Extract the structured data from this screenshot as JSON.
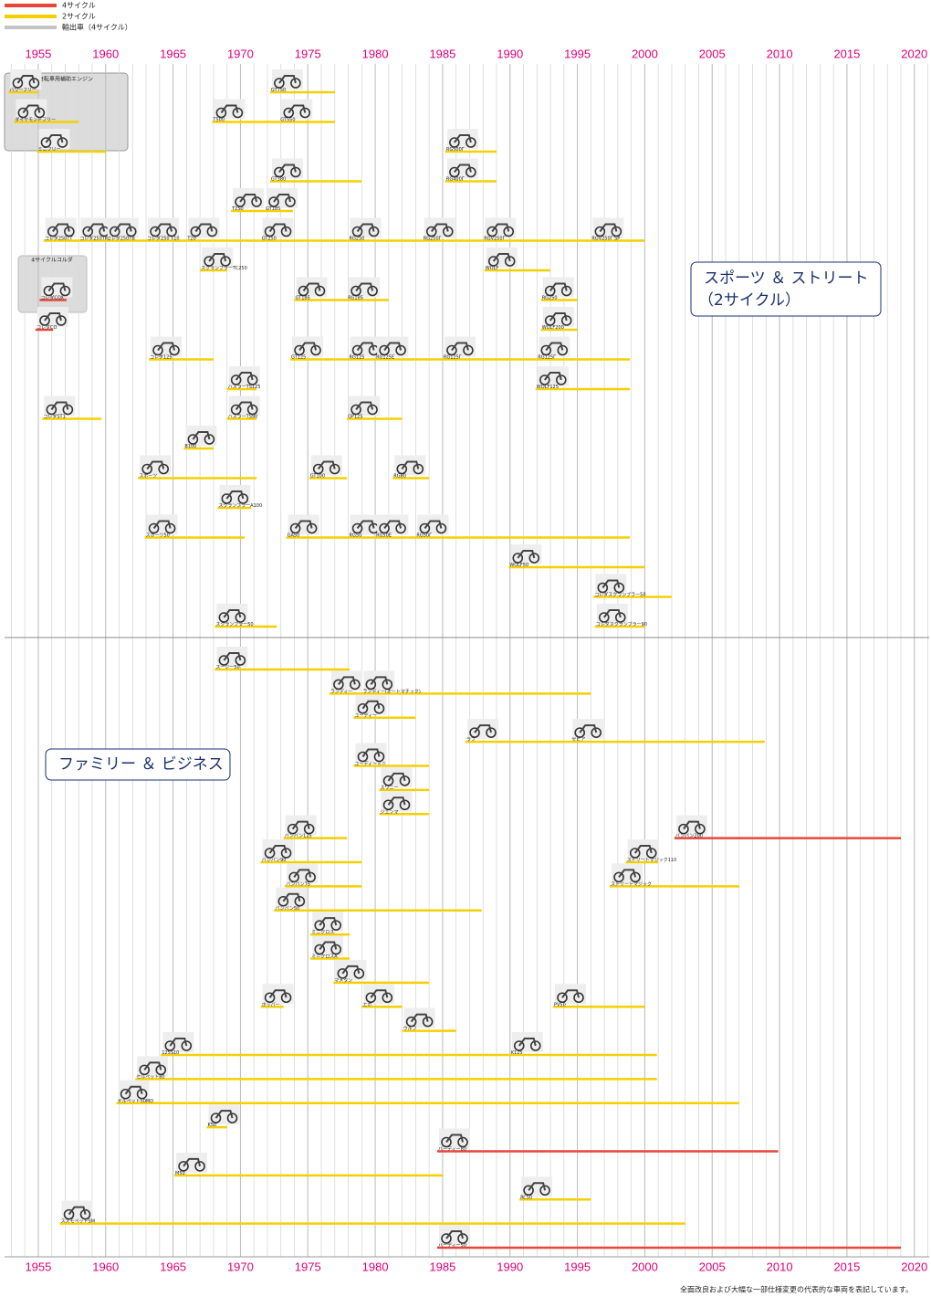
{
  "chart_data": {
    "type": "timeline",
    "legend": [
      {
        "name": "4サイクル",
        "color": "#e8463a"
      },
      {
        "name": "2サイクル",
        "color": "#f5d000"
      },
      {
        "name": "輸出車（4サイクル）",
        "color": "#c4c4c4"
      }
    ],
    "xlim": [
      1952.5,
      2021.1
    ],
    "xticks": [
      1955,
      1960,
      1965,
      1970,
      1975,
      1980,
      1985,
      1990,
      1995,
      2000,
      2005,
      2010,
      2015,
      2020
    ],
    "minor_grid_step": 1,
    "group_boxes": [
      "自転車用補助エンジン",
      "4サイクルコルダ"
    ],
    "note": "全面改良および大幅な一部仕様変更の代表的な車両を表記しています。",
    "sections": [
      {
        "label": [
          "スポーツ ＆ ストリート",
          "（2サイクル）"
        ],
        "rows": [
          [
            {
              "label": "パワーフリー",
              "start": 1952.8,
              "end": 1955.0,
              "color": "#f5d000"
            },
            {
              "label": "GT750",
              "start": 1972.2,
              "end": 1977.0,
              "color": "#f5d000"
            }
          ],
          [
            {
              "label": "ダイヤモンドフリー",
              "start": 1953.2,
              "end": 1958.0,
              "color": "#f5d000"
            },
            {
              "label": "T500",
              "start": 1967.9,
              "end": 1972.9,
              "color": "#f5d000"
            },
            {
              "label": "GT550",
              "start": 1972.9,
              "end": 1977.0,
              "color": "#f5d000"
            }
          ],
          [
            {
              "label": "ミニフリー",
              "start": 1954.9,
              "end": 1960.0,
              "color": "#f5d000"
            },
            {
              "label": "RG500Γ",
              "start": 1985.2,
              "end": 1989.0,
              "color": "#f5d000"
            }
          ],
          [
            {
              "label": "GT380",
              "start": 1972.2,
              "end": 1979.0,
              "color": "#f5d000"
            },
            {
              "label": "RG400Γ",
              "start": 1985.2,
              "end": 1989.0,
              "color": "#f5d000"
            }
          ],
          [
            {
              "label": "T250",
              "start": 1969.3,
              "end": 1971.8,
              "color": "#f5d000"
            },
            {
              "label": "GT185",
              "start": 1971.8,
              "end": 1973.9,
              "color": "#f5d000"
            }
          ],
          [
            {
              "label": "コレダ250TT",
              "start": 1955.4,
              "end": 1958.0,
              "color": "#f5d000"
            },
            {
              "label": "コレダ250TM",
              "start": 1958.0,
              "end": 1960.0,
              "color": "#f5d000"
            },
            {
              "label": "コレダ250TB",
              "start": 1960.0,
              "end": 1963.0,
              "color": "#f5d000"
            },
            {
              "label": "コレダ250 T10",
              "start": 1963.0,
              "end": 1966.0,
              "color": "#f5d000"
            },
            {
              "label": "T20",
              "start": 1966.0,
              "end": 1971.5,
              "color": "#f5d000"
            },
            {
              "label": "GT250",
              "start": 1971.5,
              "end": 1978.0,
              "color": "#f5d000"
            },
            {
              "label": "RG250",
              "start": 1978.0,
              "end": 1983.5,
              "color": "#f5d000"
            },
            {
              "label": "RG250Γ",
              "start": 1983.5,
              "end": 1988.0,
              "color": "#f5d000"
            },
            {
              "label": "RGV250Γ",
              "start": 1988.0,
              "end": 1996.0,
              "color": "#f5d000"
            },
            {
              "label": "RGV250Γ SP",
              "start": 1996.0,
              "end": 2000.0,
              "color": "#f5d000"
            }
          ],
          [
            {
              "label": "スクランブラーTC250",
              "start": 1967.0,
              "end": 1969.0,
              "color": "#f5d000"
            },
            {
              "label": "WOLF",
              "start": 1988.1,
              "end": 1993.0,
              "color": "#f5d000"
            }
          ],
          [
            {
              "label": "コレダCOX",
              "start": 1955.1,
              "end": 1957.1,
              "color": "#e8463a"
            },
            {
              "label": "GT185",
              "start": 1974.0,
              "end": 1977.9,
              "color": "#f5d000"
            },
            {
              "label": "RG185",
              "start": 1977.9,
              "end": 1981.0,
              "color": "#f5d000"
            },
            {
              "label": "RG250",
              "start": 1992.3,
              "end": 1995.0,
              "color": "#f5d000"
            }
          ],
          [
            {
              "label": "コレダCO",
              "start": 1954.8,
              "end": 1956.1,
              "color": "#e8463a"
            },
            {
              "label": "WOLF200",
              "start": 1992.3,
              "end": 1995.0,
              "color": "#f5d000"
            }
          ],
          [
            {
              "label": "コレダ125",
              "start": 1963.2,
              "end": 1968.0,
              "color": "#f5d000"
            },
            {
              "label": "GT125",
              "start": 1973.7,
              "end": 1978.0,
              "color": "#f5d000"
            },
            {
              "label": "RG125",
              "start": 1978.0,
              "end": 1980.0,
              "color": "#f5d000"
            },
            {
              "label": "RG125E",
              "start": 1980.0,
              "end": 1985.0,
              "color": "#f5d000"
            },
            {
              "label": "RG125Γ",
              "start": 1985.0,
              "end": 1992.0,
              "color": "#f5d000"
            },
            {
              "label": "RG125Γ",
              "start": 1992.0,
              "end": 1998.9,
              "color": "#f5d000"
            }
          ],
          [
            {
              "label": "ハスラーTS125",
              "start": 1969.0,
              "end": 1971.2,
              "color": "#f5d000"
            },
            {
              "label": "WOLF125",
              "start": 1991.9,
              "end": 1998.9,
              "color": "#f5d000"
            }
          ],
          [
            {
              "label": "コレダST1",
              "start": 1955.3,
              "end": 1959.7,
              "color": "#f5d000"
            },
            {
              "label": "ハスラーTS90",
              "start": 1969.0,
              "end": 1971.2,
              "color": "#f5d000"
            },
            {
              "label": "GP125",
              "start": 1977.9,
              "end": 1982.0,
              "color": "#f5d000"
            }
          ],
          [
            {
              "label": "B100",
              "start": 1965.8,
              "end": 1968.0,
              "color": "#f5d000"
            }
          ],
          [
            {
              "label": "スポーツ",
              "start": 1962.4,
              "end": 1971.2,
              "color": "#f5d000"
            },
            {
              "label": "GT100",
              "start": 1975.1,
              "end": 1977.9,
              "color": "#f5d000"
            },
            {
              "label": "RG80",
              "start": 1981.3,
              "end": 1984.0,
              "color": "#f5d000"
            }
          ],
          [
            {
              "label": "スクランブラーA100",
              "start": 1968.3,
              "end": 1970.8,
              "color": "#f5d000"
            }
          ],
          [
            {
              "label": "スポーツ50",
              "start": 1962.9,
              "end": 1970.3,
              "color": "#f5d000"
            },
            {
              "label": "GA50",
              "start": 1973.4,
              "end": 1978.0,
              "color": "#f5d000"
            },
            {
              "label": "RG50",
              "start": 1978.0,
              "end": 1980.0,
              "color": "#f5d000"
            },
            {
              "label": "RG50E",
              "start": 1980.0,
              "end": 1983.0,
              "color": "#f5d000"
            },
            {
              "label": "RG50Γ",
              "start": 1983.0,
              "end": 1998.9,
              "color": "#f5d000"
            }
          ],
          [
            {
              "label": "WOLF50",
              "start": 1989.9,
              "end": 2000.0,
              "color": "#f5d000"
            }
          ],
          [
            {
              "label": "コレダスクランブラー50",
              "start": 1996.2,
              "end": 2002.0,
              "color": "#f5d000"
            }
          ],
          [
            {
              "label": "スクランブラー50",
              "start": 1968.1,
              "end": 1972.7,
              "color": "#f5d000"
            },
            {
              "label": "コレダスクランブラー90",
              "start": 1996.3,
              "end": 2000.0,
              "color": "#f5d000"
            }
          ]
        ]
      },
      {
        "label": [
          "ファミリー ＆ ビジネス"
        ],
        "rows": [
          [
            {
              "label": "スージー50",
              "start": 1968.1,
              "end": 1978.1,
              "color": "#f5d000"
            }
          ],
          [
            {
              "label": "ランディー",
              "start": 1976.6,
              "end": 1979.0,
              "color": "#f5d000"
            },
            {
              "label": "ランディー(オートマチック)",
              "start": 1979.0,
              "end": 1996.0,
              "color": "#f5d000"
            }
          ],
          [
            {
              "label": "ユーディー",
              "start": 1978.4,
              "end": 1983.0,
              "color": "#f5d000"
            }
          ],
          [
            {
              "label": "ラブ",
              "start": 1986.7,
              "end": 1994.5,
              "color": "#f5d000"
            },
            {
              "label": "セピア",
              "start": 1994.5,
              "end": 2008.9,
              "color": "#f5d000"
            }
          ],
          [
            {
              "label": "ユーディーミニ",
              "start": 1978.4,
              "end": 1984.0,
              "color": "#f5d000"
            }
          ],
          [
            {
              "label": "スワニー",
              "start": 1980.3,
              "end": 1984.0,
              "color": "#f5d000"
            }
          ],
          [
            {
              "label": "ジェンマ",
              "start": 1980.3,
              "end": 1984.0,
              "color": "#f5d000"
            }
          ],
          [
            {
              "label": "バンバン125",
              "start": 1973.2,
              "end": 1977.9,
              "color": "#f5d000"
            },
            {
              "label": "バンバン200",
              "start": 2002.2,
              "end": 2019.0,
              "color": "#e8463a"
            }
          ],
          [
            {
              "label": "バンバン90",
              "start": 1971.5,
              "end": 1979.0,
              "color": "#f5d000"
            },
            {
              "label": "ストリートマジック110",
              "start": 1998.6,
              "end": 2001.0,
              "color": "#f5d000"
            }
          ],
          [
            {
              "label": "バンバン75",
              "start": 1973.3,
              "end": 1979.0,
              "color": "#f5d000"
            },
            {
              "label": "ストリートマジック",
              "start": 1997.4,
              "end": 2007.0,
              "color": "#f5d000"
            }
          ],
          [
            {
              "label": "バンバン50",
              "start": 1972.5,
              "end": 1987.9,
              "color": "#f5d000"
            }
          ],
          [
            {
              "label": "ミニクロス",
              "start": 1975.2,
              "end": 1978.1,
              "color": "#f5d000"
            }
          ],
          [
            {
              "label": "ミニクロスA",
              "start": 1975.2,
              "end": 1978.1,
              "color": "#f5d000"
            }
          ],
          [
            {
              "label": "マメタン",
              "start": 1976.9,
              "end": 1984.0,
              "color": "#f5d000"
            }
          ],
          [
            {
              "label": "ホッパー",
              "start": 1971.5,
              "end": 1973.2,
              "color": "#f5d000"
            },
            {
              "label": "エポ",
              "start": 1979.0,
              "end": 1982.0,
              "color": "#f5d000"
            },
            {
              "label": "PV50",
              "start": 1993.2,
              "end": 2000.0,
              "color": "#f5d000"
            }
          ],
          [
            {
              "label": "ウルフ",
              "start": 1982.0,
              "end": 1986.0,
              "color": "#f5d000"
            }
          ],
          [
            {
              "label": "125S10",
              "start": 1964.1,
              "end": 1990.0,
              "color": "#f5d000"
            },
            {
              "label": "K125",
              "start": 1990.0,
              "end": 2000.9,
              "color": "#f5d000"
            }
          ],
          [
            {
              "label": "セルペット80",
              "start": 1962.2,
              "end": 2000.9,
              "color": "#f5d000"
            }
          ],
          [
            {
              "label": "セルペット50MD",
              "start": 1960.8,
              "end": 2007.0,
              "color": "#f5d000"
            }
          ],
          [
            {
              "label": "K50",
              "start": 1967.5,
              "end": 1969.0,
              "color": "#f5d000"
            }
          ],
          [
            {
              "label": "バーディー80",
              "start": 1984.6,
              "end": 2009.9,
              "color": "#e8463a"
            }
          ],
          [
            {
              "label": "M50",
              "start": 1965.1,
              "end": 1985.0,
              "color": "#f5d000"
            }
          ],
          [
            {
              "label": "RC50",
              "start": 1990.7,
              "end": 1996.0,
              "color": "#f5d000"
            }
          ],
          [
            {
              "label": "スズモペットSM",
              "start": 1956.6,
              "end": 2003.0,
              "color": "#f5d000"
            }
          ],
          [
            {
              "label": "バーディー50",
              "start": 1984.6,
              "end": 2019.0,
              "color": "#e8463a"
            }
          ]
        ]
      }
    ]
  }
}
